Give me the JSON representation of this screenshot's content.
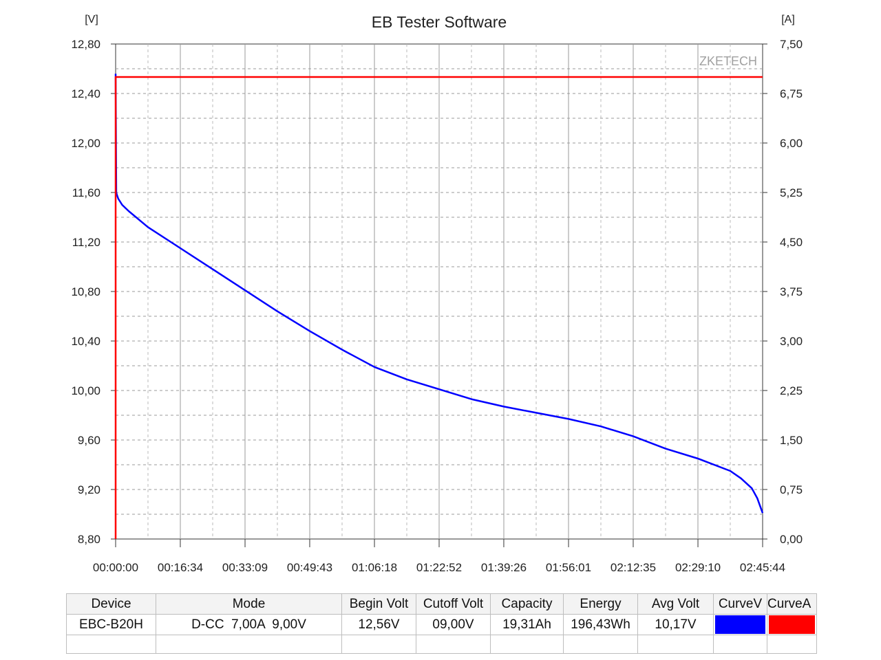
{
  "window_title": "EB Tester Software",
  "chart_data": {
    "type": "line",
    "title": "EB Tester Software",
    "watermark": "ZKETECH",
    "left_axis": {
      "unit": "[V]",
      "ylim": [
        8.8,
        12.8
      ],
      "ticks": [
        "8,80",
        "9,20",
        "9,60",
        "10,00",
        "10,40",
        "10,80",
        "11,20",
        "11,60",
        "12,00",
        "12,40",
        "12,80"
      ]
    },
    "right_axis": {
      "unit": "[A]",
      "ylim": [
        0.0,
        7.5
      ],
      "ticks": [
        "0,00",
        "0,75",
        "1,50",
        "2,25",
        "3,00",
        "3,75",
        "4,50",
        "5,25",
        "6,00",
        "6,75",
        "7,50"
      ]
    },
    "x_axis": {
      "xlim_seconds": [
        0,
        9944
      ],
      "ticks": [
        "00:00:00",
        "00:16:34",
        "00:33:09",
        "00:49:43",
        "01:06:18",
        "01:22:52",
        "01:39:26",
        "01:56:01",
        "02:12:35",
        "02:29:10",
        "02:45:44"
      ]
    },
    "grid": true,
    "series": [
      {
        "name": "CurveV",
        "axis": "left",
        "color": "#0000ff",
        "x": [
          "00:00:00",
          "00:00:10",
          "00:00:20",
          "00:00:40",
          "00:01:40",
          "00:03:20",
          "00:08:17",
          "00:16:34",
          "00:24:52",
          "00:33:09",
          "00:41:26",
          "00:49:43",
          "00:58:00",
          "01:06:18",
          "01:14:35",
          "01:22:52",
          "01:31:09",
          "01:39:26",
          "01:47:44",
          "01:56:01",
          "02:04:18",
          "02:12:35",
          "02:20:52",
          "02:29:10",
          "02:37:27",
          "02:40:12",
          "02:42:58",
          "02:44:21",
          "02:45:44"
        ],
        "y": [
          12.56,
          11.6,
          11.58,
          11.55,
          11.5,
          11.45,
          11.32,
          11.15,
          10.98,
          10.81,
          10.64,
          10.48,
          10.33,
          10.19,
          10.09,
          10.01,
          9.93,
          9.87,
          9.82,
          9.77,
          9.71,
          9.63,
          9.53,
          9.45,
          9.35,
          9.29,
          9.21,
          9.13,
          9.01
        ]
      },
      {
        "name": "CurveA",
        "axis": "right",
        "color": "#ff0000",
        "x": [
          "00:00:00",
          "00:00:00",
          "00:00:10",
          "02:45:44"
        ],
        "y": [
          0.0,
          7.0,
          7.0,
          7.0
        ]
      }
    ]
  },
  "summary_table": {
    "headers": [
      "Device",
      "Mode",
      "Begin Volt",
      "Cutoff Volt",
      "Capacity",
      "Energy",
      "Avg Volt",
      "CurveV",
      "CurveA"
    ],
    "row": {
      "device": "EBC-B20H",
      "mode": "D-CC  7,00A  9,00V",
      "begin_volt": "12,56V",
      "cutoff_volt": "09,00V",
      "capacity": "19,31Ah",
      "energy": "196,43Wh",
      "avg_volt": "10,17V",
      "curve_v_color": "#0000ff",
      "curve_a_color": "#ff0000"
    }
  }
}
